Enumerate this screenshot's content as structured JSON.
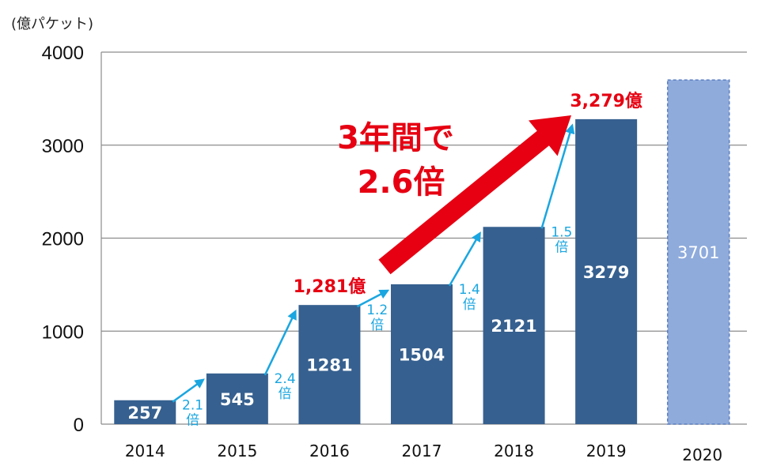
{
  "chart_data": {
    "type": "bar",
    "ylabel": "(億パケット)",
    "ylim": [
      0,
      4000
    ],
    "yticks": [
      0,
      1000,
      2000,
      3000,
      4000
    ],
    "grid": true,
    "categories": [
      "2014",
      "2015",
      "2016",
      "2017",
      "2018",
      "2019",
      "2020"
    ],
    "values": [
      257,
      545,
      1281,
      1504,
      2121,
      3279,
      3701
    ],
    "value_labels": [
      "257",
      "545",
      "1281",
      "1504",
      "2121",
      "3279",
      "3701"
    ],
    "projected": [
      false,
      false,
      false,
      false,
      false,
      false,
      true
    ],
    "colors": {
      "bar": "#36608f",
      "projected_bar": "#8fabdc",
      "projected_border": "#5b7fc1",
      "growth_arrow": "#1aa6e0",
      "highlight": "#e60012",
      "grid": "#8c8c8c"
    },
    "growth_annotations": [
      {
        "from": 0,
        "to": 1,
        "ratio": "2.1",
        "unit": "倍"
      },
      {
        "from": 1,
        "to": 2,
        "ratio": "2.4",
        "unit": "倍"
      },
      {
        "from": 2,
        "to": 3,
        "ratio": "1.2",
        "unit": "倍"
      },
      {
        "from": 3,
        "to": 4,
        "ratio": "1.4",
        "unit": "倍"
      },
      {
        "from": 4,
        "to": 5,
        "ratio": "1.5",
        "unit": "倍"
      }
    ],
    "callouts": [
      {
        "bar": 2,
        "text": "1,281億"
      },
      {
        "bar": 5,
        "text": "3,279億"
      }
    ],
    "headline": {
      "line1": "3年間で",
      "line2": "2.6倍"
    }
  }
}
